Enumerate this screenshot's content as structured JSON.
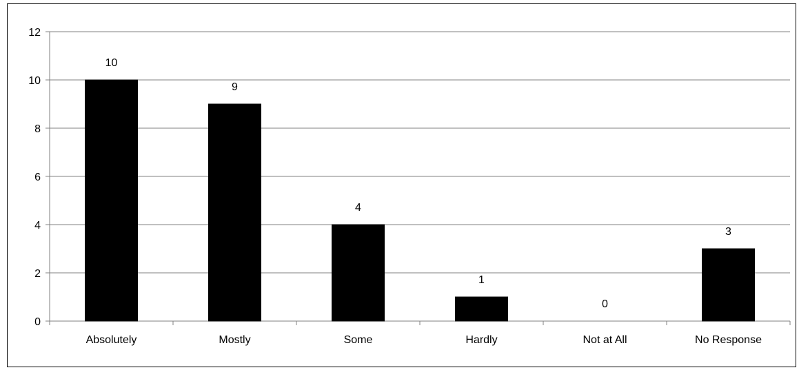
{
  "chart_data": {
    "type": "bar",
    "title": "",
    "xlabel": "",
    "ylabel": "",
    "categories": [
      "Absolutely",
      "Mostly",
      "Some",
      "Hardly",
      "Not at All",
      "No Response"
    ],
    "values": [
      10,
      9,
      4,
      1,
      0,
      3
    ],
    "data_labels": [
      "10",
      "9",
      "4",
      "1",
      "0",
      "3"
    ],
    "ylim": [
      0,
      12
    ],
    "yticks": [
      0,
      2,
      4,
      6,
      8,
      10,
      12
    ],
    "grid": "horizontal",
    "legend": "none",
    "bar_color": "#000000",
    "grid_color": "#808080",
    "axis_color": "#808080",
    "background_color": "#ffffff"
  }
}
